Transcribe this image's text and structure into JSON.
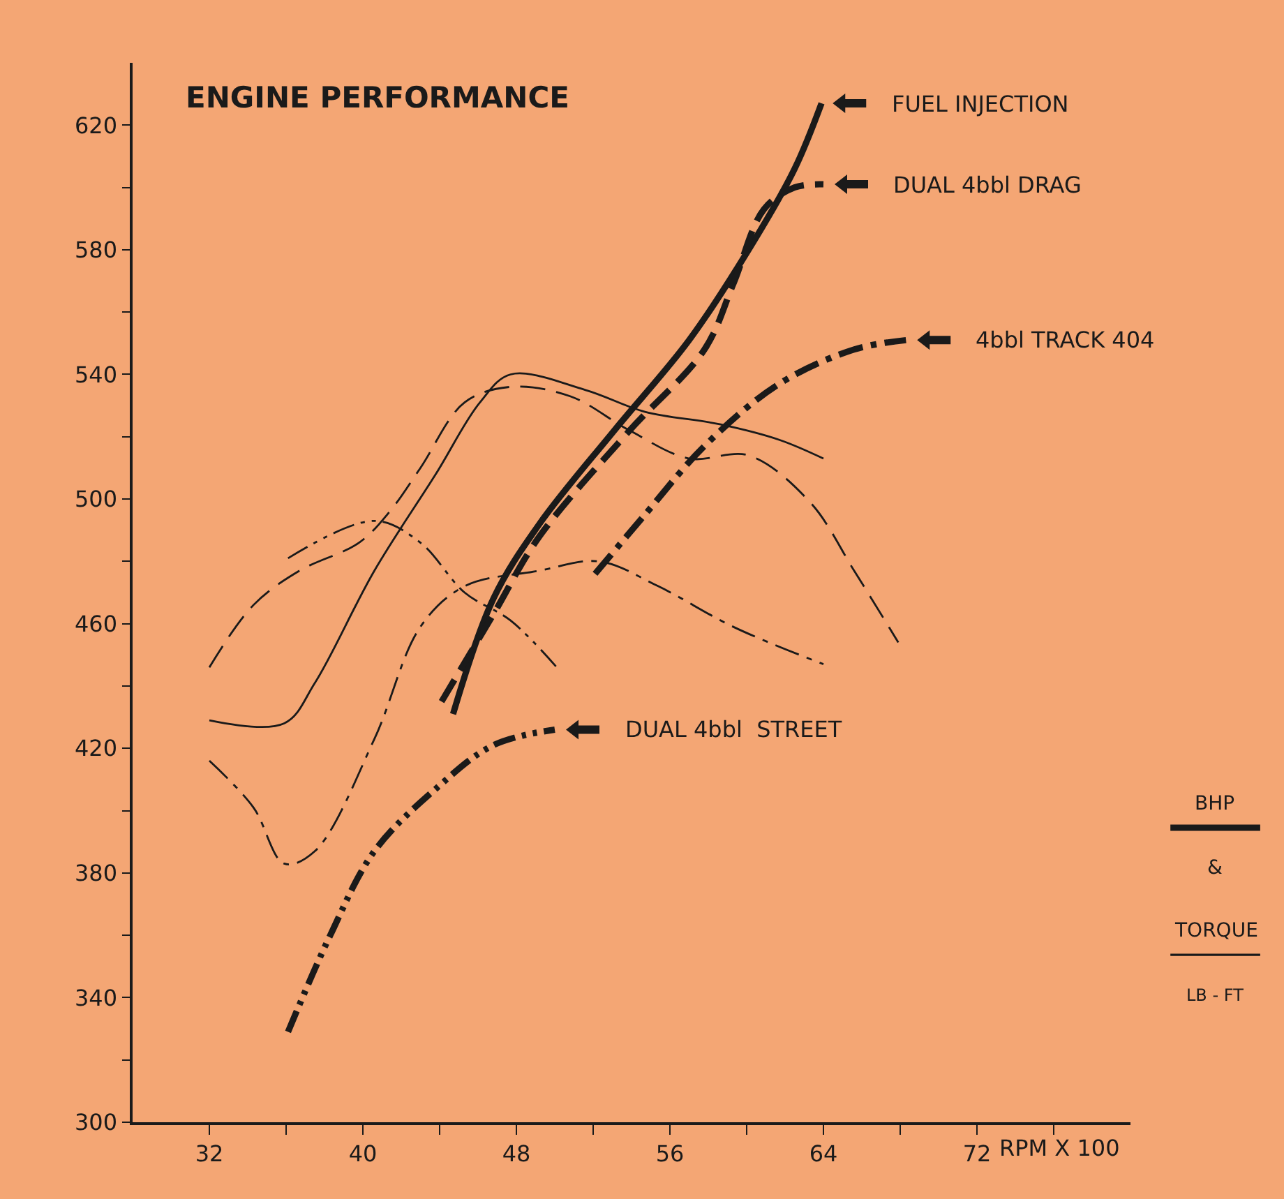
{
  "chart_data": {
    "type": "line",
    "title": "ENGINE PERFORMANCE",
    "xlabel": "RPM X 100",
    "annotations": [
      "BHP",
      "&",
      "TORQUE",
      "LB - FT"
    ],
    "xlim": [
      28,
      80
    ],
    "ylim": [
      300,
      640
    ],
    "xticks": [
      32,
      {
        "value": 36,
        "label": null
      },
      40,
      {
        "value": 44,
        "label": null
      },
      48,
      {
        "value": 52,
        "label": null
      },
      56,
      {
        "value": 60,
        "label": null
      },
      64,
      {
        "value": 68,
        "label": null
      },
      72,
      {
        "value": 76,
        "label": null
      }
    ],
    "yticks": [
      300,
      {
        "value": 320,
        "label": null
      },
      340,
      {
        "value": 360,
        "label": null
      },
      380,
      {
        "value": 400,
        "label": null
      },
      420,
      {
        "value": 440,
        "label": null
      },
      460,
      {
        "value": 480,
        "label": null
      },
      500,
      {
        "value": 520,
        "label": null
      },
      540,
      {
        "value": 560,
        "label": null
      },
      580,
      {
        "value": 600,
        "label": null
      },
      620
    ],
    "grid": false,
    "legend": "right",
    "marker": "none",
    "series": [
      {
        "name": "FUEL INJECTION",
        "line_style": "solid",
        "color": "#1a1a1a",
        "x": [
          44.7,
          46.8,
          49.2,
          53.1,
          57,
          60.1,
          62.5,
          63.9
        ],
        "values": [
          431,
          468,
          492,
          522,
          551,
          580,
          606,
          627
        ]
      },
      {
        "name": "DUAL 4bbl DRAG",
        "line_style": "dashed",
        "color": "#1a1a1a",
        "x": [
          44.1,
          46.8,
          49.2,
          53.9,
          57.8,
          59.3,
          60.9,
          62.5,
          64
        ],
        "values": [
          435,
          463,
          488,
          522,
          548,
          569,
          593,
          600,
          601
        ]
      },
      {
        "name": "4bbl TRACK 404",
        "line_style": "dashdot",
        "color": "#1a1a1a",
        "x": [
          52.1,
          54.7,
          57.8,
          61.7,
          65.6,
          68.3
        ],
        "values": [
          476,
          495,
          517,
          537,
          548,
          551
        ]
      },
      {
        "name": "DUAL 4bbl  STREET",
        "line_style": "dashdotdot",
        "color": "#1a1a1a",
        "x": [
          36.1,
          38.3,
          40.6,
          43.8,
          46.8,
          50
        ],
        "values": [
          329,
          360,
          387,
          407,
          421,
          426
        ]
      },
      {
        "line_style": "solid",
        "color": "#1a1a1a",
        "x": [
          32,
          35.9,
          37.5,
          40.6,
          43.8,
          46.1,
          47.7,
          51.6,
          54.7,
          58.6,
          61.7,
          64
        ],
        "values": [
          429,
          428,
          441,
          477,
          508,
          531,
          540,
          535,
          528,
          524,
          519,
          513
        ]
      },
      {
        "line_style": "dashed",
        "color": "#1a1a1a",
        "x": [
          32,
          34.3,
          36.7,
          39.8,
          41.4,
          43,
          45.3,
          47.7,
          50.8,
          53.9,
          57,
          60.1,
          63.3,
          65.6,
          67.9
        ],
        "values": [
          446,
          466,
          477,
          486,
          496,
          510,
          531,
          536,
          533,
          522,
          513,
          514,
          499,
          477,
          454
        ]
      },
      {
        "line_style": "dashdotdot",
        "color": "#1a1a1a",
        "x": [
          36.1,
          40.6,
          43,
          45.3,
          47.7,
          50.1
        ],
        "values": [
          481,
          493,
          486,
          470,
          461,
          446
        ]
      },
      {
        "line_style": "dashdot",
        "color": "#1a1a1a",
        "x": [
          32,
          34.3,
          35.9,
          37.5,
          40.6,
          43,
          45.3,
          49.2,
          52.3,
          55.4,
          59.3,
          64
        ],
        "values": [
          416,
          401,
          383,
          387,
          423,
          459,
          472,
          477,
          480,
          472,
          459,
          447
        ]
      }
    ]
  }
}
